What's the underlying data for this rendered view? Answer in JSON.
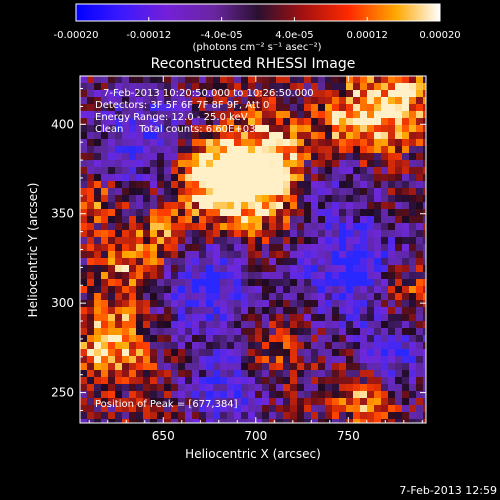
{
  "chart_data": {
    "type": "heatmap",
    "title": "Reconstructed RHESSI Image",
    "xlabel": "Heliocentric X (arcsec)",
    "ylabel": "Heliocentric Y (arcsec)",
    "xlim": [
      605,
      792
    ],
    "ylim": [
      233,
      427
    ],
    "x_ticks": [
      650,
      700,
      750
    ],
    "y_ticks": [
      250,
      300,
      350,
      400
    ],
    "colorbar": {
      "range": [
        -0.0002,
        0.0002
      ],
      "tick_values": [
        -0.0002,
        -0.00012,
        -4e-05,
        4e-05,
        0.00012,
        0.0002
      ],
      "tick_labels": [
        "-0.00020",
        "-0.00012",
        "-4.0e-05",
        "4.0e-05",
        "0.00012",
        "0.00020"
      ],
      "unit_label": "(photons cm⁻² s⁻¹ asec⁻²)"
    },
    "annotations": {
      "time_range": "7-Feb-2013 10:20:50.000 to 10:26:50.000",
      "detectors": "Detectors: 3F 5F 6F 7F 8F 9F, Att 0",
      "energy": "Energy Range: 12.0 - 25.0 keV",
      "method": "Clean     Total counts: 6.60E+03",
      "peak": "Position of Peak = [677,384]"
    },
    "grid": false,
    "legend": "colorbar-top",
    "colors": {
      "background": "#000000",
      "text": "#ffffff"
    }
  },
  "footer": {
    "timestamp": "7-Feb-2013 12:59"
  }
}
